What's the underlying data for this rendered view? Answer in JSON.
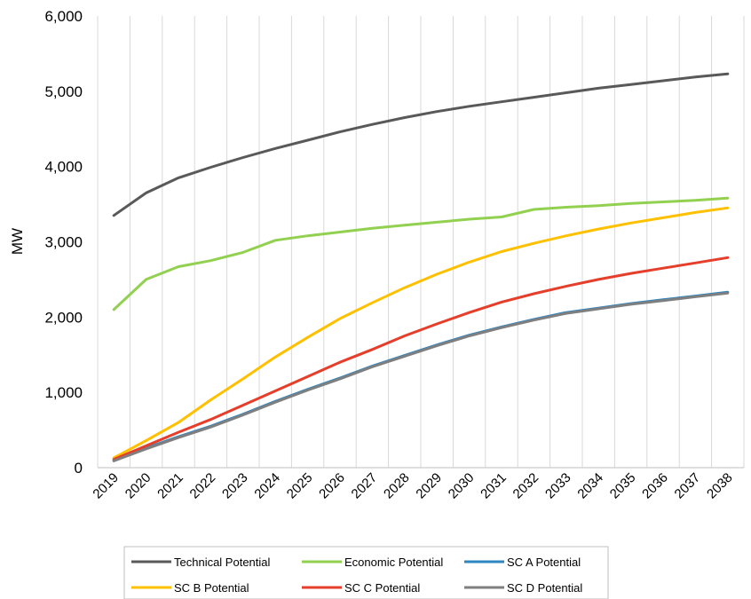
{
  "chart_data": {
    "type": "line",
    "title": "",
    "xlabel": "",
    "ylabel": "MW",
    "ylim": [
      0,
      6000
    ],
    "y_ticks": [
      "0",
      "1,000",
      "2,000",
      "3,000",
      "4,000",
      "5,000",
      "6,000"
    ],
    "grid": "vertical gridlines",
    "legend_position": "bottom",
    "x": [
      "2019",
      "2020",
      "2021",
      "2022",
      "2023",
      "2024",
      "2025",
      "2026",
      "2027",
      "2028",
      "2029",
      "2030",
      "2031",
      "2032",
      "2033",
      "2034",
      "2035",
      "2036",
      "2037",
      "2038"
    ],
    "series": [
      {
        "name": "Technical Potential",
        "color": "#595959",
        "values": [
          3350,
          3650,
          3850,
          3990,
          4120,
          4240,
          4350,
          4460,
          4560,
          4650,
          4730,
          4800,
          4860,
          4920,
          4980,
          5040,
          5090,
          5140,
          5190,
          5230
        ]
      },
      {
        "name": "Economic Potential",
        "color": "#92d050",
        "values": [
          2100,
          2500,
          2670,
          2750,
          2860,
          3020,
          3080,
          3130,
          3180,
          3220,
          3260,
          3300,
          3330,
          3430,
          3460,
          3480,
          3510,
          3530,
          3550,
          3580
        ]
      },
      {
        "name": "SC A Potential",
        "color": "#2e86c1",
        "values": [
          100,
          260,
          410,
          550,
          710,
          880,
          1040,
          1190,
          1350,
          1490,
          1630,
          1760,
          1870,
          1970,
          2060,
          2120,
          2180,
          2230,
          2280,
          2330
        ]
      },
      {
        "name": "SC B Potential",
        "color": "#ffc000",
        "values": [
          130,
          360,
          600,
          900,
          1180,
          1470,
          1730,
          1980,
          2190,
          2390,
          2570,
          2730,
          2870,
          2980,
          3080,
          3170,
          3250,
          3320,
          3390,
          3450
        ]
      },
      {
        "name": "SC C Potential",
        "color": "#e53e2b",
        "values": [
          110,
          290,
          470,
          640,
          830,
          1020,
          1210,
          1400,
          1570,
          1750,
          1910,
          2060,
          2200,
          2310,
          2410,
          2500,
          2580,
          2650,
          2720,
          2790
        ]
      },
      {
        "name": "SC D Potential",
        "color": "#7f7f7f",
        "values": [
          90,
          250,
          400,
          540,
          700,
          870,
          1030,
          1180,
          1340,
          1480,
          1620,
          1750,
          1860,
          1960,
          2050,
          2110,
          2170,
          2220,
          2270,
          2320
        ]
      }
    ]
  }
}
